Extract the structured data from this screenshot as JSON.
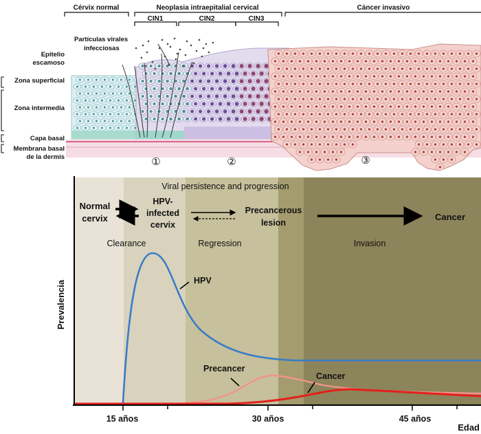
{
  "top": {
    "headers": {
      "normal": "Cérvix normal",
      "neoplasia": "Neoplasia intraepitalial cervical",
      "cin1": "CIN1",
      "cin2": "CIN2",
      "cin3": "CIN3",
      "invasive": "Cáncer invasivo"
    },
    "particles_line1": "Partículas virales",
    "particles_line2": "infecciosas",
    "layers": {
      "epithelium_line1": "Epitelio",
      "epithelium_line2": "escamoso",
      "superficial": "Zona superficial",
      "intermediate": "Zona intermedia",
      "basal": "Capa basal",
      "membrane_line1": "Membrana basal",
      "membrane_line2": "de la dermis"
    },
    "stage_markers": [
      "①",
      "②",
      "③"
    ]
  },
  "bottom": {
    "persistence_label": "Viral persistence and progression",
    "states": {
      "normal_line1": "Normal",
      "normal_line2": "cervix",
      "hpv_line1": "HPV-",
      "hpv_line2": "infected",
      "hpv_line3": "cervix",
      "precancer_line1": "Precancerous",
      "precancer_line2": "lesion",
      "cancer": "Cancer"
    },
    "phases": [
      "Clearance",
      "Regression",
      "Invasion"
    ],
    "curve_labels": {
      "hpv": "HPV",
      "precancer": "Precancer",
      "cancer": "Cancer"
    },
    "y_label": "Prevalencia",
    "x_label": "Edad",
    "x_ticks": [
      "15 años",
      "30 años",
      "45 años"
    ]
  },
  "colors": {
    "hpv": "#3a7cc8",
    "precancer": "#f0948c",
    "cancer": "#e3201b",
    "zone1": "#e9e2d6",
    "zone2": "#d9d3bd",
    "zone3": "#c6c09c",
    "zone4": "#a49c6e",
    "zone5": "#8c845a"
  }
}
